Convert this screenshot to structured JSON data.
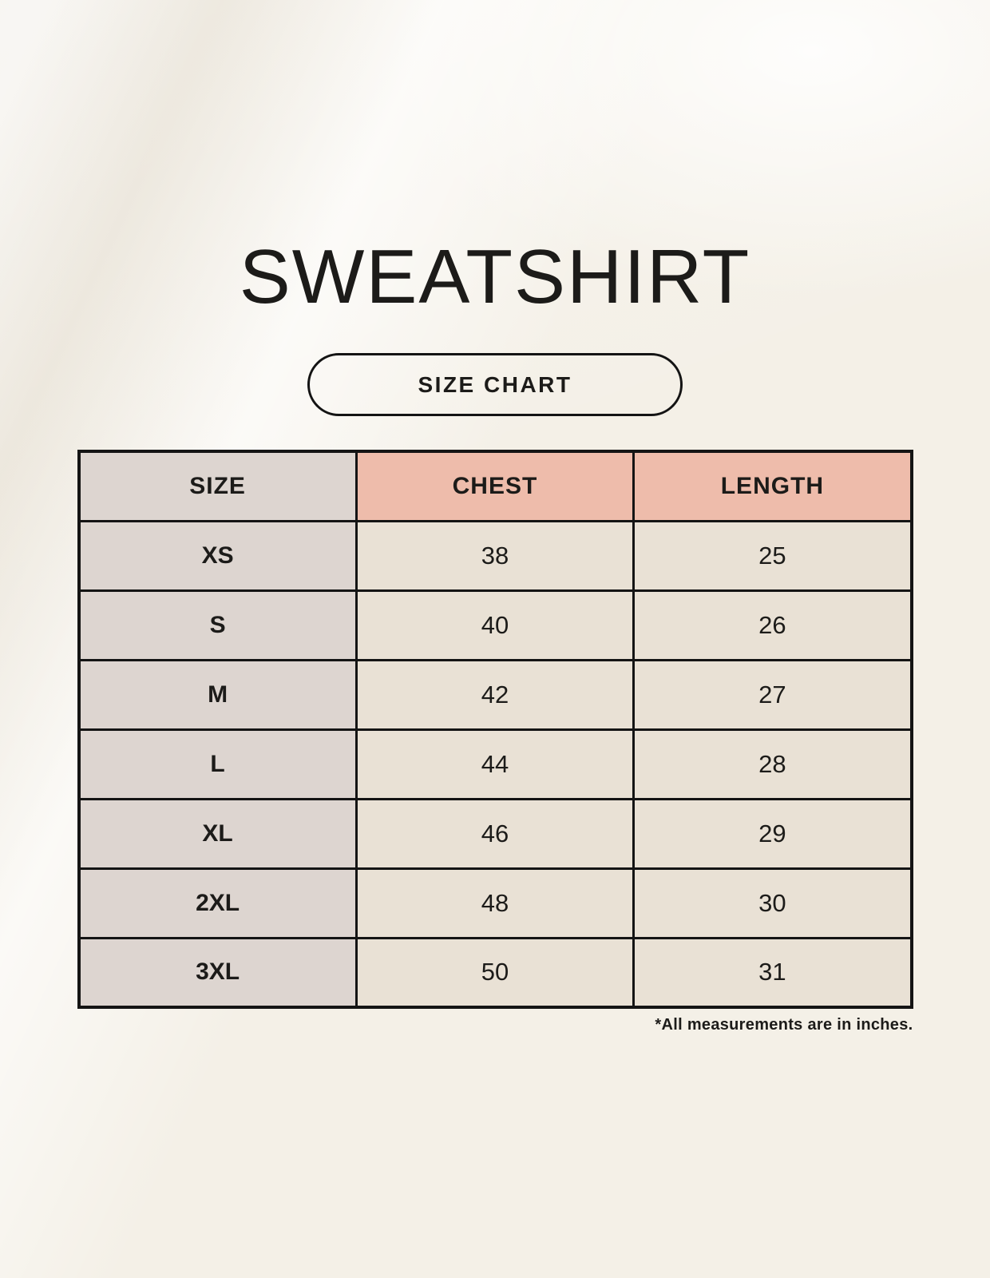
{
  "page": {
    "title": "SWEATSHIRT",
    "badge_label": "SIZE CHART",
    "footnote": "*All measurements are in inches."
  },
  "chart_data": {
    "type": "table",
    "title": "SWEATSHIRT",
    "subtitle": "SIZE CHART",
    "columns": [
      "SIZE",
      "CHEST",
      "LENGTH"
    ],
    "rows": [
      [
        "XS",
        "38",
        "25"
      ],
      [
        "S",
        "40",
        "26"
      ],
      [
        "M",
        "42",
        "27"
      ],
      [
        "L",
        "44",
        "28"
      ],
      [
        "XL",
        "46",
        "29"
      ],
      [
        "2XL",
        "48",
        "30"
      ],
      [
        "3XL",
        "50",
        "31"
      ]
    ],
    "units_note": "*All measurements are in inches.",
    "layout": {
      "columns_equal_width": true,
      "header_row_colors": [
        "gray",
        "salmon",
        "salmon"
      ],
      "first_column_color": "gray",
      "grid": "black borders"
    }
  },
  "colors": {
    "bg": "#f4f0e7",
    "ink": "#1c1b19",
    "line": "#141414",
    "cell-gray": "#ddd5d0",
    "cell-salmon": "#eebcab",
    "cell-cream": "#e9e1d5"
  }
}
